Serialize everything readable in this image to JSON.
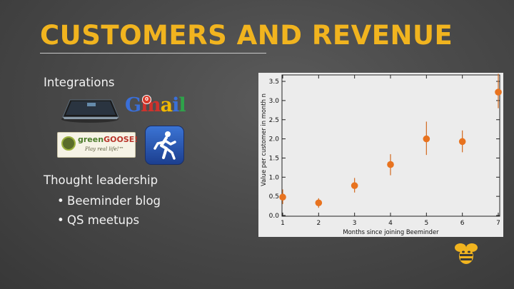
{
  "slide": {
    "title": "CUSTOMERS AND REVENUE",
    "integrations_heading": "Integrations",
    "thought_heading": "Thought leadership",
    "bullets": [
      "Beeminder blog",
      "QS meetups"
    ]
  },
  "logos": {
    "withings": "withings-scale-icon",
    "gmail": {
      "text": "Gmail",
      "badge": "0"
    },
    "greengoose": {
      "green": "green",
      "red": "GOOSE!",
      "tagline": "Play real life!™"
    },
    "runkeeper": "runkeeper-icon",
    "bee": "beeminder-bee-icon"
  },
  "colors": {
    "title": "#f1b41f",
    "marker": "#e8731f",
    "background": "#4a4a4a"
  },
  "chart_data": {
    "type": "scatter",
    "title": "",
    "xlabel": "Months since joining Beeminder",
    "ylabel": "Value per customer in month n",
    "xlim": [
      1,
      7
    ],
    "ylim": [
      0,
      3.7
    ],
    "x_ticks": [
      1,
      2,
      3,
      4,
      5,
      6,
      7
    ],
    "y_ticks": [
      0.0,
      0.5,
      1.0,
      1.5,
      2.0,
      2.5,
      3.0,
      3.5
    ],
    "y_tick_labels": [
      "0.0",
      "0.5",
      "1.0",
      "1.5",
      "2.0",
      "2.5",
      "3.0",
      "3.5"
    ],
    "grid": false,
    "points": [
      {
        "x": 1,
        "y": 0.48,
        "err_low": 0.3,
        "err_high": 0.68
      },
      {
        "x": 2,
        "y": 0.33,
        "err_low": 0.2,
        "err_high": 0.45
      },
      {
        "x": 3,
        "y": 0.78,
        "err_low": 0.6,
        "err_high": 0.98
      },
      {
        "x": 4,
        "y": 1.33,
        "err_low": 1.05,
        "err_high": 1.6
      },
      {
        "x": 5,
        "y": 2.0,
        "err_low": 1.58,
        "err_high": 2.45
      },
      {
        "x": 6,
        "y": 1.93,
        "err_low": 1.65,
        "err_high": 2.22
      },
      {
        "x": 7,
        "y": 3.22,
        "err_low": 2.8,
        "err_high": 3.7
      }
    ]
  }
}
